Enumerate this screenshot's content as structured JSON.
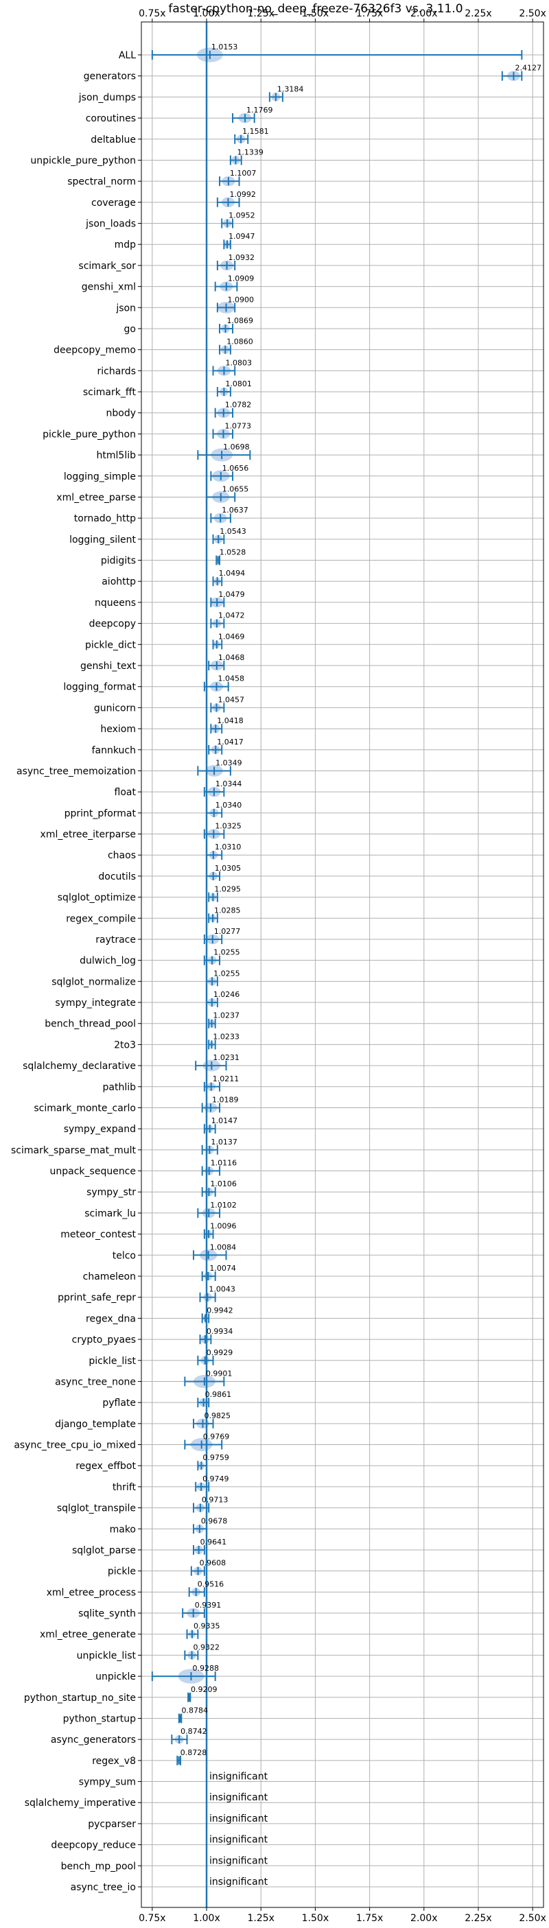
{
  "chart_data": {
    "type": "violin",
    "title": "faster-cpython-no_deep_freeze-76326f3 vs. 3.11.0",
    "xlim": [
      0.7,
      2.55
    ],
    "x_ticks": [
      0.75,
      1.0,
      1.25,
      1.5,
      1.75,
      2.0,
      2.25,
      2.5
    ],
    "x_tick_labels": [
      "0.75x",
      "1.00x",
      "1.25x",
      "1.50x",
      "1.75x",
      "2.00x",
      "2.25x",
      "2.50x"
    ],
    "reference_line": 1.0,
    "grid": true,
    "accent_color": "#1f77b4",
    "violin_color": "#aec7e8",
    "insignificant_text": "insignificant",
    "benchmarks": [
      {
        "name": "ALL",
        "value": 1.0153,
        "label": "1.0153",
        "lo": 0.75,
        "hi": 2.45,
        "spread": 0.06
      },
      {
        "name": "generators",
        "value": 2.4127,
        "label": "2.4127",
        "lo": 2.36,
        "hi": 2.45,
        "spread": 0.03
      },
      {
        "name": "json_dumps",
        "value": 1.3184,
        "label": "1.3184",
        "lo": 1.29,
        "hi": 1.35,
        "spread": 0.02
      },
      {
        "name": "coroutines",
        "value": 1.1769,
        "label": "1.1769",
        "lo": 1.12,
        "hi": 1.22,
        "spread": 0.03
      },
      {
        "name": "deltablue",
        "value": 1.1581,
        "label": "1.1581",
        "lo": 1.13,
        "hi": 1.19,
        "spread": 0.02
      },
      {
        "name": "unpickle_pure_python",
        "value": 1.1339,
        "label": "1.1339",
        "lo": 1.11,
        "hi": 1.16,
        "spread": 0.02
      },
      {
        "name": "spectral_norm",
        "value": 1.1007,
        "label": "1.1007",
        "lo": 1.06,
        "hi": 1.15,
        "spread": 0.03
      },
      {
        "name": "coverage",
        "value": 1.0992,
        "label": "1.0992",
        "lo": 1.05,
        "hi": 1.15,
        "spread": 0.03
      },
      {
        "name": "json_loads",
        "value": 1.0952,
        "label": "1.0952",
        "lo": 1.07,
        "hi": 1.12,
        "spread": 0.02
      },
      {
        "name": "mdp",
        "value": 1.0947,
        "label": "1.0947",
        "lo": 1.08,
        "hi": 1.11,
        "spread": 0.015
      },
      {
        "name": "scimark_sor",
        "value": 1.0932,
        "label": "1.0932",
        "lo": 1.05,
        "hi": 1.13,
        "spread": 0.03
      },
      {
        "name": "genshi_xml",
        "value": 1.0909,
        "label": "1.0909",
        "lo": 1.04,
        "hi": 1.14,
        "spread": 0.03
      },
      {
        "name": "json",
        "value": 1.09,
        "label": "1.0900",
        "lo": 1.05,
        "hi": 1.13,
        "spread": 0.04
      },
      {
        "name": "go",
        "value": 1.0869,
        "label": "1.0869",
        "lo": 1.06,
        "hi": 1.12,
        "spread": 0.02
      },
      {
        "name": "deepcopy_memo",
        "value": 1.086,
        "label": "1.0860",
        "lo": 1.06,
        "hi": 1.11,
        "spread": 0.02
      },
      {
        "name": "richards",
        "value": 1.0803,
        "label": "1.0803",
        "lo": 1.03,
        "hi": 1.13,
        "spread": 0.03
      },
      {
        "name": "scimark_fft",
        "value": 1.0801,
        "label": "1.0801",
        "lo": 1.05,
        "hi": 1.11,
        "spread": 0.02
      },
      {
        "name": "nbody",
        "value": 1.0782,
        "label": "1.0782",
        "lo": 1.04,
        "hi": 1.12,
        "spread": 0.03
      },
      {
        "name": "pickle_pure_python",
        "value": 1.0773,
        "label": "1.0773",
        "lo": 1.03,
        "hi": 1.12,
        "spread": 0.03
      },
      {
        "name": "html5lib",
        "value": 1.0698,
        "label": "1.0698",
        "lo": 0.96,
        "hi": 1.2,
        "spread": 0.05
      },
      {
        "name": "logging_simple",
        "value": 1.0656,
        "label": "1.0656",
        "lo": 1.02,
        "hi": 1.12,
        "spread": 0.04
      },
      {
        "name": "xml_etree_parse",
        "value": 1.0655,
        "label": "1.0655",
        "lo": 1.0,
        "hi": 1.13,
        "spread": 0.04
      },
      {
        "name": "tornado_http",
        "value": 1.0637,
        "label": "1.0637",
        "lo": 1.02,
        "hi": 1.11,
        "spread": 0.03
      },
      {
        "name": "logging_silent",
        "value": 1.0543,
        "label": "1.0543",
        "lo": 1.03,
        "hi": 1.08,
        "spread": 0.02
      },
      {
        "name": "pidigits",
        "value": 1.0528,
        "label": "1.0528",
        "lo": 1.045,
        "hi": 1.06,
        "spread": 0.008
      },
      {
        "name": "aiohttp",
        "value": 1.0494,
        "label": "1.0494",
        "lo": 1.03,
        "hi": 1.07,
        "spread": 0.015
      },
      {
        "name": "nqueens",
        "value": 1.0479,
        "label": "1.0479",
        "lo": 1.02,
        "hi": 1.08,
        "spread": 0.03
      },
      {
        "name": "deepcopy",
        "value": 1.0472,
        "label": "1.0472",
        "lo": 1.02,
        "hi": 1.08,
        "spread": 0.02
      },
      {
        "name": "pickle_dict",
        "value": 1.0469,
        "label": "1.0469",
        "lo": 1.03,
        "hi": 1.07,
        "spread": 0.015
      },
      {
        "name": "genshi_text",
        "value": 1.0468,
        "label": "1.0468",
        "lo": 1.01,
        "hi": 1.08,
        "spread": 0.03
      },
      {
        "name": "logging_format",
        "value": 1.0458,
        "label": "1.0458",
        "lo": 0.99,
        "hi": 1.1,
        "spread": 0.03
      },
      {
        "name": "gunicorn",
        "value": 1.0457,
        "label": "1.0457",
        "lo": 1.02,
        "hi": 1.08,
        "spread": 0.02
      },
      {
        "name": "hexiom",
        "value": 1.0418,
        "label": "1.0418",
        "lo": 1.02,
        "hi": 1.07,
        "spread": 0.02
      },
      {
        "name": "fannkuch",
        "value": 1.0417,
        "label": "1.0417",
        "lo": 1.01,
        "hi": 1.07,
        "spread": 0.02
      },
      {
        "name": "async_tree_memoization",
        "value": 1.0349,
        "label": "1.0349",
        "lo": 0.96,
        "hi": 1.11,
        "spread": 0.04
      },
      {
        "name": "float",
        "value": 1.0344,
        "label": "1.0344",
        "lo": 0.99,
        "hi": 1.08,
        "spread": 0.03
      },
      {
        "name": "pprint_pformat",
        "value": 1.034,
        "label": "1.0340",
        "lo": 1.0,
        "hi": 1.07,
        "spread": 0.02
      },
      {
        "name": "xml_etree_iterparse",
        "value": 1.0325,
        "label": "1.0325",
        "lo": 0.99,
        "hi": 1.08,
        "spread": 0.03
      },
      {
        "name": "chaos",
        "value": 1.031,
        "label": "1.0310",
        "lo": 1.0,
        "hi": 1.07,
        "spread": 0.02
      },
      {
        "name": "docutils",
        "value": 1.0305,
        "label": "1.0305",
        "lo": 1.0,
        "hi": 1.06,
        "spread": 0.02
      },
      {
        "name": "sqlglot_optimize",
        "value": 1.0295,
        "label": "1.0295",
        "lo": 1.01,
        "hi": 1.05,
        "spread": 0.015
      },
      {
        "name": "regex_compile",
        "value": 1.0285,
        "label": "1.0285",
        "lo": 1.01,
        "hi": 1.05,
        "spread": 0.015
      },
      {
        "name": "raytrace",
        "value": 1.0277,
        "label": "1.0277",
        "lo": 0.99,
        "hi": 1.07,
        "spread": 0.03
      },
      {
        "name": "dulwich_log",
        "value": 1.0255,
        "label": "1.0255",
        "lo": 0.99,
        "hi": 1.06,
        "spread": 0.02
      },
      {
        "name": "sqlglot_normalize",
        "value": 1.0255,
        "label": "1.0255",
        "lo": 1.0,
        "hi": 1.05,
        "spread": 0.02
      },
      {
        "name": "sympy_integrate",
        "value": 1.0246,
        "label": "1.0246",
        "lo": 1.0,
        "hi": 1.05,
        "spread": 0.02
      },
      {
        "name": "bench_thread_pool",
        "value": 1.0237,
        "label": "1.0237",
        "lo": 1.01,
        "hi": 1.04,
        "spread": 0.015
      },
      {
        "name": "2to3",
        "value": 1.0233,
        "label": "1.0233",
        "lo": 1.01,
        "hi": 1.04,
        "spread": 0.01
      },
      {
        "name": "sqlalchemy_declarative",
        "value": 1.0231,
        "label": "1.0231",
        "lo": 0.95,
        "hi": 1.09,
        "spread": 0.04
      },
      {
        "name": "pathlib",
        "value": 1.0211,
        "label": "1.0211",
        "lo": 0.99,
        "hi": 1.06,
        "spread": 0.02
      },
      {
        "name": "scimark_monte_carlo",
        "value": 1.0189,
        "label": "1.0189",
        "lo": 0.98,
        "hi": 1.06,
        "spread": 0.03
      },
      {
        "name": "sympy_expand",
        "value": 1.0147,
        "label": "1.0147",
        "lo": 0.99,
        "hi": 1.04,
        "spread": 0.015
      },
      {
        "name": "scimark_sparse_mat_mult",
        "value": 1.0137,
        "label": "1.0137",
        "lo": 0.98,
        "hi": 1.05,
        "spread": 0.02
      },
      {
        "name": "unpack_sequence",
        "value": 1.0116,
        "label": "1.0116",
        "lo": 0.98,
        "hi": 1.06,
        "spread": 0.02
      },
      {
        "name": "sympy_str",
        "value": 1.0106,
        "label": "1.0106",
        "lo": 0.98,
        "hi": 1.04,
        "spread": 0.02
      },
      {
        "name": "scimark_lu",
        "value": 1.0102,
        "label": "1.0102",
        "lo": 0.96,
        "hi": 1.06,
        "spread": 0.03
      },
      {
        "name": "meteor_contest",
        "value": 1.0096,
        "label": "1.0096",
        "lo": 0.99,
        "hi": 1.03,
        "spread": 0.015
      },
      {
        "name": "telco",
        "value": 1.0084,
        "label": "1.0084",
        "lo": 0.94,
        "hi": 1.09,
        "spread": 0.04
      },
      {
        "name": "chameleon",
        "value": 1.0074,
        "label": "1.0074",
        "lo": 0.98,
        "hi": 1.04,
        "spread": 0.02
      },
      {
        "name": "pprint_safe_repr",
        "value": 1.0043,
        "label": "1.0043",
        "lo": 0.97,
        "hi": 1.04,
        "spread": 0.02
      },
      {
        "name": "regex_dna",
        "value": 0.9942,
        "label": "0.9942",
        "lo": 0.98,
        "hi": 1.01,
        "spread": 0.01
      },
      {
        "name": "crypto_pyaes",
        "value": 0.9934,
        "label": "0.9934",
        "lo": 0.97,
        "hi": 1.02,
        "spread": 0.02
      },
      {
        "name": "pickle_list",
        "value": 0.9929,
        "label": "0.9929",
        "lo": 0.96,
        "hi": 1.03,
        "spread": 0.02
      },
      {
        "name": "async_tree_none",
        "value": 0.9901,
        "label": "0.9901",
        "lo": 0.9,
        "hi": 1.08,
        "spread": 0.05
      },
      {
        "name": "pyflate",
        "value": 0.9861,
        "label": "0.9861",
        "lo": 0.96,
        "hi": 1.01,
        "spread": 0.02
      },
      {
        "name": "django_template",
        "value": 0.9825,
        "label": "0.9825",
        "lo": 0.94,
        "hi": 1.03,
        "spread": 0.03
      },
      {
        "name": "async_tree_cpu_io_mixed",
        "value": 0.9769,
        "label": "0.9769",
        "lo": 0.9,
        "hi": 1.07,
        "spread": 0.05
      },
      {
        "name": "regex_effbot",
        "value": 0.9759,
        "label": "0.9759",
        "lo": 0.96,
        "hi": 1.0,
        "spread": 0.015
      },
      {
        "name": "thrift",
        "value": 0.9749,
        "label": "0.9749",
        "lo": 0.95,
        "hi": 1.01,
        "spread": 0.02
      },
      {
        "name": "sqlglot_transpile",
        "value": 0.9713,
        "label": "0.9713",
        "lo": 0.94,
        "hi": 1.01,
        "spread": 0.02
      },
      {
        "name": "mako",
        "value": 0.9678,
        "label": "0.9678",
        "lo": 0.94,
        "hi": 1.0,
        "spread": 0.02
      },
      {
        "name": "sqlglot_parse",
        "value": 0.9641,
        "label": "0.9641",
        "lo": 0.94,
        "hi": 0.99,
        "spread": 0.02
      },
      {
        "name": "pickle",
        "value": 0.9608,
        "label": "0.9608",
        "lo": 0.93,
        "hi": 0.99,
        "spread": 0.02
      },
      {
        "name": "xml_etree_process",
        "value": 0.9516,
        "label": "0.9516",
        "lo": 0.92,
        "hi": 0.99,
        "spread": 0.02
      },
      {
        "name": "sqlite_synth",
        "value": 0.9391,
        "label": "0.9391",
        "lo": 0.89,
        "hi": 0.99,
        "spread": 0.03
      },
      {
        "name": "xml_etree_generate",
        "value": 0.9335,
        "label": "0.9335",
        "lo": 0.91,
        "hi": 0.96,
        "spread": 0.015
      },
      {
        "name": "unpickle_list",
        "value": 0.9322,
        "label": "0.9322",
        "lo": 0.9,
        "hi": 0.96,
        "spread": 0.02
      },
      {
        "name": "unpickle",
        "value": 0.9288,
        "label": "0.9288",
        "lo": 0.75,
        "hi": 1.04,
        "spread": 0.06
      },
      {
        "name": "python_startup_no_site",
        "value": 0.9209,
        "label": "0.9209",
        "lo": 0.915,
        "hi": 0.925,
        "spread": 0.004
      },
      {
        "name": "python_startup",
        "value": 0.8784,
        "label": "0.8784",
        "lo": 0.873,
        "hi": 0.884,
        "spread": 0.004
      },
      {
        "name": "async_generators",
        "value": 0.8742,
        "label": "0.8742",
        "lo": 0.84,
        "hi": 0.91,
        "spread": 0.02
      },
      {
        "name": "regex_v8",
        "value": 0.8728,
        "label": "0.8728",
        "lo": 0.865,
        "hi": 0.88,
        "spread": 0.005
      },
      {
        "name": "sympy_sum",
        "value": null,
        "label": "insignificant"
      },
      {
        "name": "sqlalchemy_imperative",
        "value": null,
        "label": "insignificant"
      },
      {
        "name": "pycparser",
        "value": null,
        "label": "insignificant"
      },
      {
        "name": "deepcopy_reduce",
        "value": null,
        "label": "insignificant"
      },
      {
        "name": "bench_mp_pool",
        "value": null,
        "label": "insignificant"
      },
      {
        "name": "async_tree_io",
        "value": null,
        "label": "insignificant"
      }
    ]
  }
}
